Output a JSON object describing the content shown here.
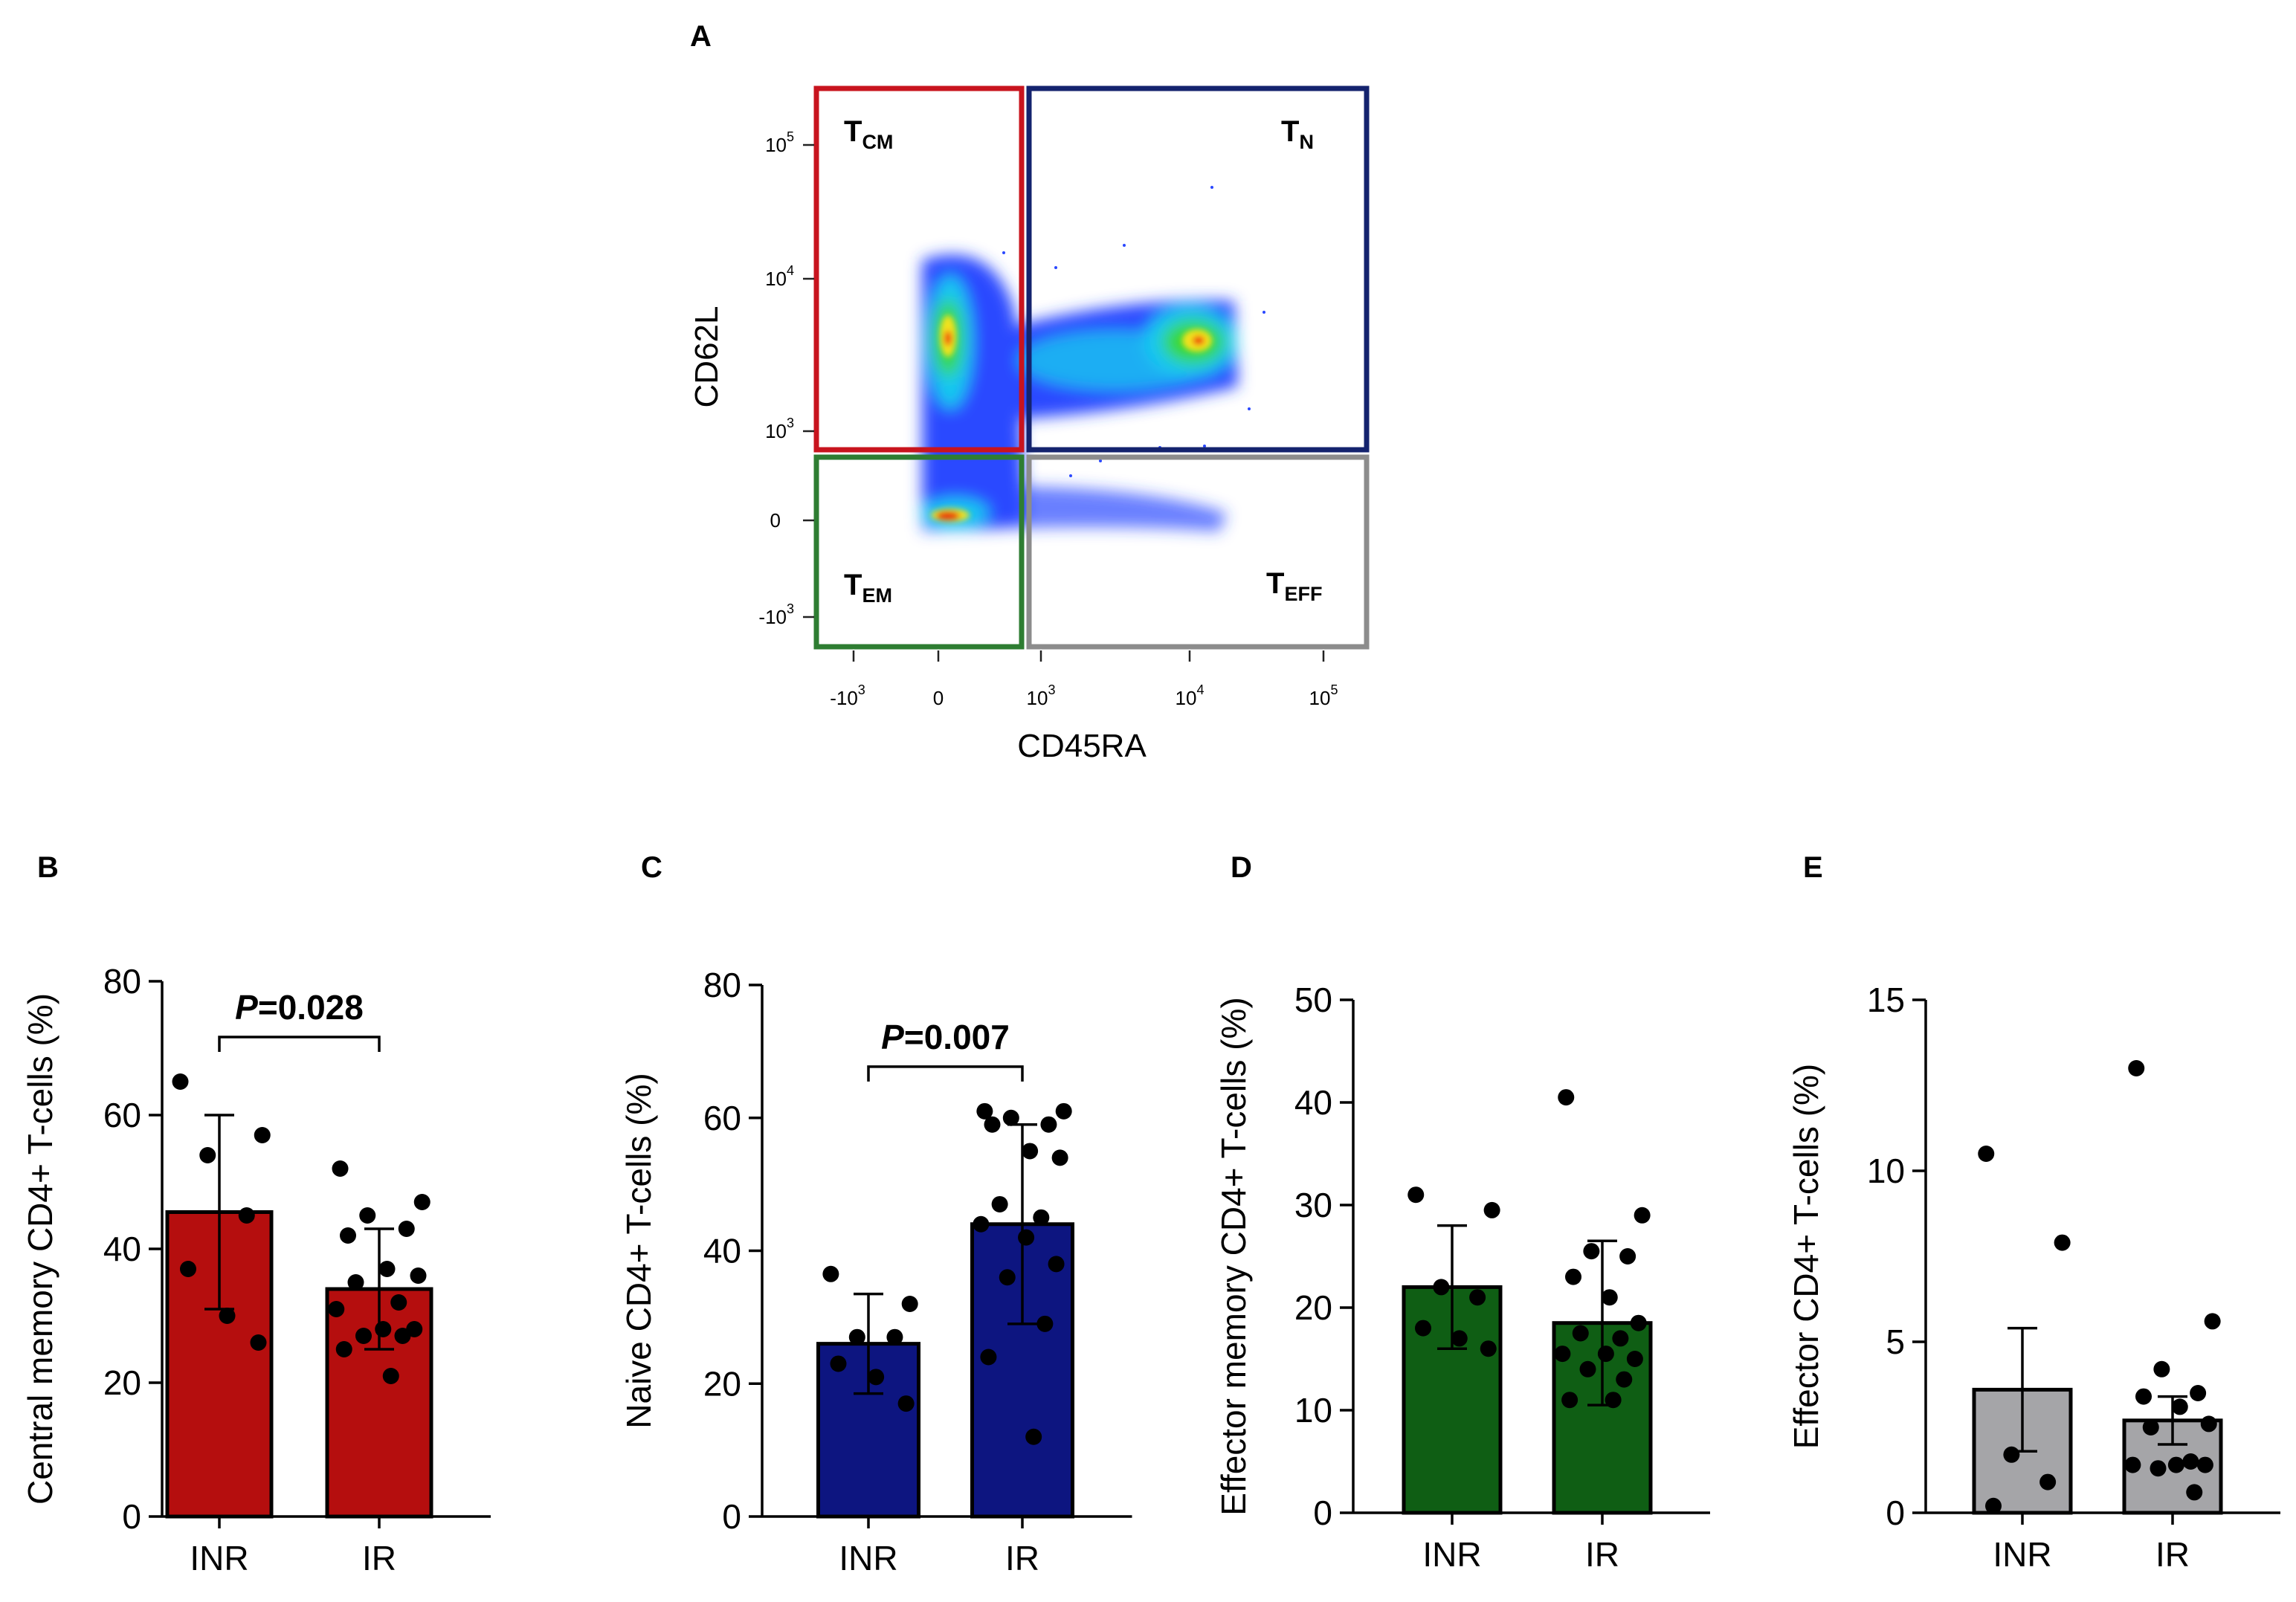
{
  "chart_data": [
    {
      "panel": "A",
      "type": "scatter",
      "title": "",
      "xlabel": "CD45RA",
      "ylabel": "CD62L",
      "x_ticks": [
        {
          "base": "-10",
          "exp": "3"
        },
        {
          "base": "0",
          "exp": ""
        },
        {
          "base": "10",
          "exp": "3"
        },
        {
          "base": "10",
          "exp": "4"
        },
        {
          "base": "10",
          "exp": "5"
        }
      ],
      "y_ticks": [
        {
          "base": "10",
          "exp": "5"
        },
        {
          "base": "10",
          "exp": "4"
        },
        {
          "base": "10",
          "exp": "3"
        },
        {
          "base": "0",
          "exp": ""
        },
        {
          "base": "-10",
          "exp": "3"
        }
      ],
      "gates": [
        {
          "id": "tcm",
          "main": "T",
          "sub": "CM",
          "color": "#c8141e"
        },
        {
          "id": "tn",
          "main": "T",
          "sub": "N",
          "color": "#14236e"
        },
        {
          "id": "tem",
          "main": "T",
          "sub": "EM",
          "color": "#2e7d32"
        },
        {
          "id": "teff",
          "main": "T",
          "sub": "EFF",
          "color": "#8c8c8c"
        }
      ]
    },
    {
      "panel": "B",
      "type": "bar",
      "ylabel": "Central memory CD4+ T-cells (%)",
      "ylim": [
        0,
        80
      ],
      "yticks": [
        0,
        20,
        40,
        60,
        80
      ],
      "categories": [
        "INR",
        "IR"
      ],
      "values": [
        45.5,
        34
      ],
      "sd": [
        14.5,
        9
      ],
      "color": "#b50e0e",
      "points": [
        [
          65,
          57,
          54,
          45,
          37,
          30,
          26
        ],
        [
          52,
          47,
          45,
          43,
          42,
          37,
          36,
          35,
          32,
          31,
          28,
          28,
          27,
          27,
          25,
          21
        ]
      ],
      "annotation": {
        "p_italic": "P",
        "p_rest": "=0.028"
      }
    },
    {
      "panel": "C",
      "type": "bar",
      "ylabel": "Naive CD4+ T-cells (%)",
      "ylim": [
        0,
        80
      ],
      "yticks": [
        0,
        20,
        40,
        60,
        80
      ],
      "categories": [
        "INR",
        "IR"
      ],
      "values": [
        26,
        44
      ],
      "sd": [
        7.5,
        15
      ],
      "color": "#0d1580",
      "points": [
        [
          36.5,
          32,
          27,
          27,
          23,
          21,
          17
        ],
        [
          61,
          61,
          60,
          59,
          59,
          55,
          54,
          47,
          45,
          44,
          42,
          38,
          36,
          29,
          24,
          12
        ]
      ],
      "annotation": {
        "p_italic": "P",
        "p_rest": "=0.007"
      }
    },
    {
      "panel": "D",
      "type": "bar",
      "ylabel": "Effector memory CD4+ T-cells (%)",
      "ylim": [
        0,
        50
      ],
      "yticks": [
        0,
        10,
        20,
        30,
        40,
        50
      ],
      "categories": [
        "INR",
        "IR"
      ],
      "values": [
        22,
        18.5
      ],
      "sd": [
        6,
        8
      ],
      "color": "#0f5e14",
      "points": [
        [
          31,
          29.5,
          22,
          21,
          18,
          17,
          16
        ],
        [
          40.5,
          29,
          25.5,
          25,
          23,
          21,
          18.5,
          17.5,
          17,
          15.5,
          15.5,
          15,
          14,
          13,
          11,
          11
        ]
      ],
      "annotation": null
    },
    {
      "panel": "E",
      "type": "bar",
      "ylabel": "Effector CD4+ T-cells (%)",
      "ylim": [
        0,
        15
      ],
      "yticks": [
        0,
        5,
        10,
        15
      ],
      "categories": [
        "INR",
        "IR"
      ],
      "values": [
        3.6,
        2.7
      ],
      "sd": [
        1.8,
        0.7
      ],
      "color": "#a5a5a8",
      "points": [
        [
          10.5,
          7.9,
          1.7,
          0.9,
          0.2
        ],
        [
          13,
          5.6,
          4.2,
          3.5,
          3.4,
          3.1,
          2.6,
          2.5,
          1.5,
          1.4,
          1.4,
          1.4,
          1.3,
          0.6
        ]
      ],
      "annotation": null
    }
  ]
}
